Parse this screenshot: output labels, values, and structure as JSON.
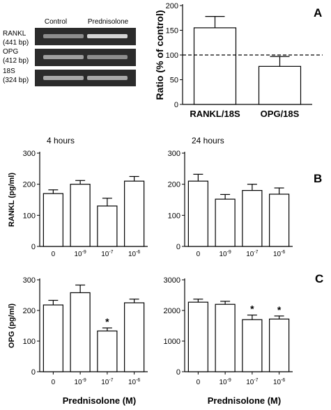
{
  "panel_letters": {
    "a": "A",
    "b": "B",
    "c": "C"
  },
  "gel": {
    "columns": [
      "Control",
      "Prednisolone"
    ],
    "rows": [
      {
        "name": "RANKL",
        "size": "(441 bp)",
        "control": 0.45,
        "prednisolone": 0.85
      },
      {
        "name": "OPG",
        "size": "(412 bp)",
        "control": 0.55,
        "prednisolone": 0.45
      },
      {
        "name": "18S",
        "size": "(324 bp)",
        "control": 0.6,
        "prednisolone": 0.6
      }
    ]
  },
  "chart_data": [
    {
      "id": "A",
      "type": "bar",
      "categories": [
        "RANKL/18S",
        "OPG/18S"
      ],
      "values": [
        155,
        77
      ],
      "errors": [
        23,
        20
      ],
      "ylabel": "Ratio (% of control)",
      "ylim": [
        0,
        200
      ],
      "yticks": [
        0,
        50,
        100,
        150,
        200
      ],
      "reference_line": 100
    },
    {
      "id": "B-4h",
      "type": "bar",
      "title": "4 hours",
      "ylabel": "RANKL (pg/ml)",
      "categories": [
        "0",
        "10-9",
        "10-7",
        "10-6"
      ],
      "values": [
        170,
        200,
        130,
        210
      ],
      "errors": [
        12,
        12,
        25,
        15
      ],
      "ylim": [
        0,
        300
      ],
      "yticks": [
        0,
        100,
        200,
        300
      ]
    },
    {
      "id": "B-24h",
      "type": "bar",
      "title": "24 hours",
      "categories": [
        "0",
        "10-9",
        "10-7",
        "10-6"
      ],
      "values": [
        210,
        152,
        180,
        168
      ],
      "errors": [
        22,
        15,
        20,
        20
      ],
      "ylim": [
        0,
        300
      ],
      "yticks": [
        0,
        100,
        200,
        300
      ]
    },
    {
      "id": "C-4h",
      "type": "bar",
      "ylabel": "OPG (pg/ml)",
      "xlabel": "Prednisolone (M)",
      "categories": [
        "0",
        "10-9",
        "10-7",
        "10-6"
      ],
      "values": [
        218,
        258,
        133,
        225
      ],
      "errors": [
        15,
        25,
        10,
        12
      ],
      "significant": [
        false,
        false,
        true,
        false
      ],
      "ylim": [
        0,
        300
      ],
      "yticks": [
        0,
        100,
        200,
        300
      ]
    },
    {
      "id": "C-24h",
      "type": "bar",
      "xlabel": "Prednisolone (M)",
      "categories": [
        "0",
        "10-9",
        "10-7",
        "10-6"
      ],
      "values": [
        2270,
        2200,
        1700,
        1720
      ],
      "errors": [
        100,
        100,
        150,
        100
      ],
      "significant": [
        false,
        false,
        true,
        true
      ],
      "ylim": [
        0,
        3000
      ],
      "yticks": [
        0,
        1000,
        2000,
        3000
      ]
    }
  ]
}
